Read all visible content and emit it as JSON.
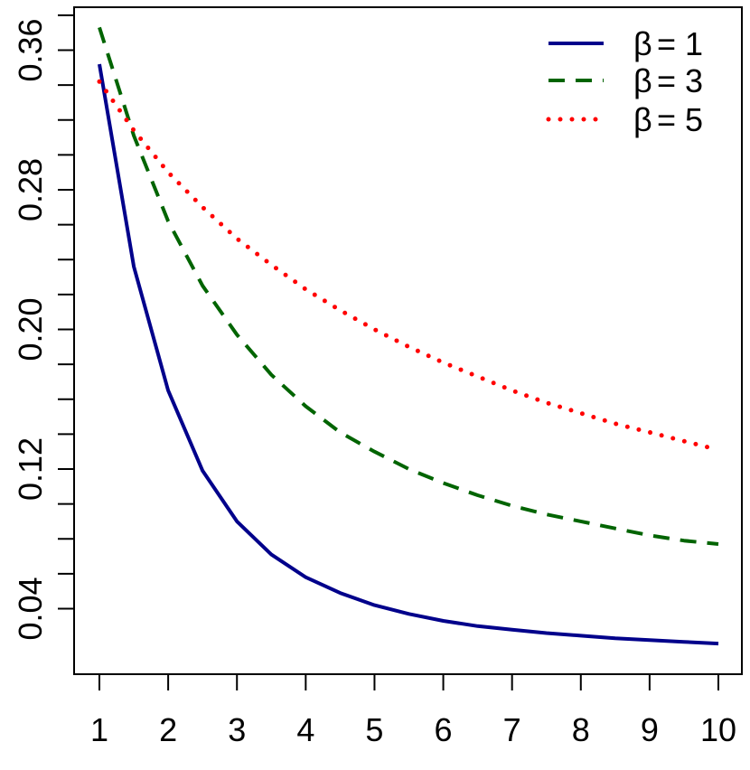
{
  "chart_data": {
    "type": "line",
    "x": [
      1,
      1.5,
      2,
      2.5,
      3,
      3.5,
      4,
      4.5,
      5,
      5.5,
      6,
      6.5,
      7,
      7.5,
      8,
      8.5,
      9,
      9.5,
      10
    ],
    "series": [
      {
        "name": "β = 1",
        "legend_symbol": "β",
        "legend_value": "= 1",
        "color": "#00008B",
        "style": "solid",
        "values": [
          0.352,
          0.236,
          0.165,
          0.119,
          0.09,
          0.071,
          0.058,
          0.049,
          0.042,
          0.037,
          0.033,
          0.03,
          0.028,
          0.026,
          0.0245,
          0.023,
          0.022,
          0.021,
          0.02
        ]
      },
      {
        "name": "β = 3",
        "legend_symbol": "β",
        "legend_value": "= 3",
        "color": "#006400",
        "style": "dashed",
        "values": [
          0.373,
          0.311,
          0.262,
          0.225,
          0.197,
          0.174,
          0.156,
          0.141,
          0.13,
          0.12,
          0.112,
          0.105,
          0.099,
          0.094,
          0.09,
          0.086,
          0.082,
          0.079,
          0.077
        ]
      },
      {
        "name": "β = 5",
        "legend_symbol": "β",
        "legend_value": "= 5",
        "color": "#FF0000",
        "style": "dotted",
        "values": [
          0.342,
          0.314,
          0.29,
          0.27,
          0.252,
          0.237,
          0.223,
          0.211,
          0.2,
          0.19,
          0.181,
          0.173,
          0.165,
          0.158,
          0.152,
          0.146,
          0.141,
          0.136,
          0.131
        ]
      }
    ],
    "x_ticks": [
      "1",
      "2",
      "3",
      "4",
      "5",
      "6",
      "7",
      "8",
      "9",
      "10"
    ],
    "y_ticks": [
      "0.04",
      "0.12",
      "0.20",
      "0.28",
      "0.36"
    ],
    "xlim": [
      1,
      10
    ],
    "ylim": [
      0.04,
      0.36
    ],
    "grid": false,
    "legend_position": "top-right"
  }
}
